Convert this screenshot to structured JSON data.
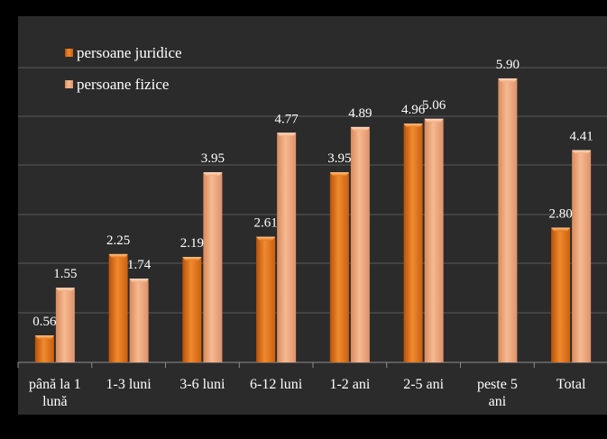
{
  "chart_data": {
    "type": "bar",
    "title": "",
    "xlabel": "",
    "ylabel": "",
    "categories": [
      "până la 1 lună",
      "1-3 luni",
      "3-6 luni",
      "6-12 luni",
      "1-2 ani",
      "2-5 ani",
      "peste 5 ani",
      "Total"
    ],
    "series": [
      {
        "name": "persoane juridice",
        "values": [
          0.56,
          2.25,
          2.19,
          2.61,
          3.95,
          4.96,
          null,
          2.8
        ],
        "labels": [
          "0.56",
          "2.25",
          "2.19",
          "2.61",
          "3.95",
          "4.96",
          "",
          "2.80"
        ],
        "color": "#E8751A"
      },
      {
        "name": "persoane fizice",
        "values": [
          1.55,
          1.74,
          3.95,
          4.77,
          4.89,
          5.06,
          5.9,
          4.41
        ],
        "labels": [
          "1.55",
          "1.74",
          "3.95",
          "4.77",
          "4.89",
          "5.06",
          "5.90",
          "4.41"
        ],
        "color": "#F2A878"
      }
    ],
    "ylim": [
      0,
      6.9
    ],
    "grid": true,
    "legend": "top-left",
    "background": "#2B2B2B",
    "outer_background": "#000000",
    "text_color": "#FFFFFF",
    "category_label_lines": [
      [
        "până la 1",
        "lună"
      ],
      [
        "1-3 luni"
      ],
      [
        "3-6 luni"
      ],
      [
        "6-12 luni"
      ],
      [
        "1-2 ani"
      ],
      [
        "2-5 ani"
      ],
      [
        "peste 5",
        "ani"
      ],
      [
        "Total"
      ]
    ]
  }
}
